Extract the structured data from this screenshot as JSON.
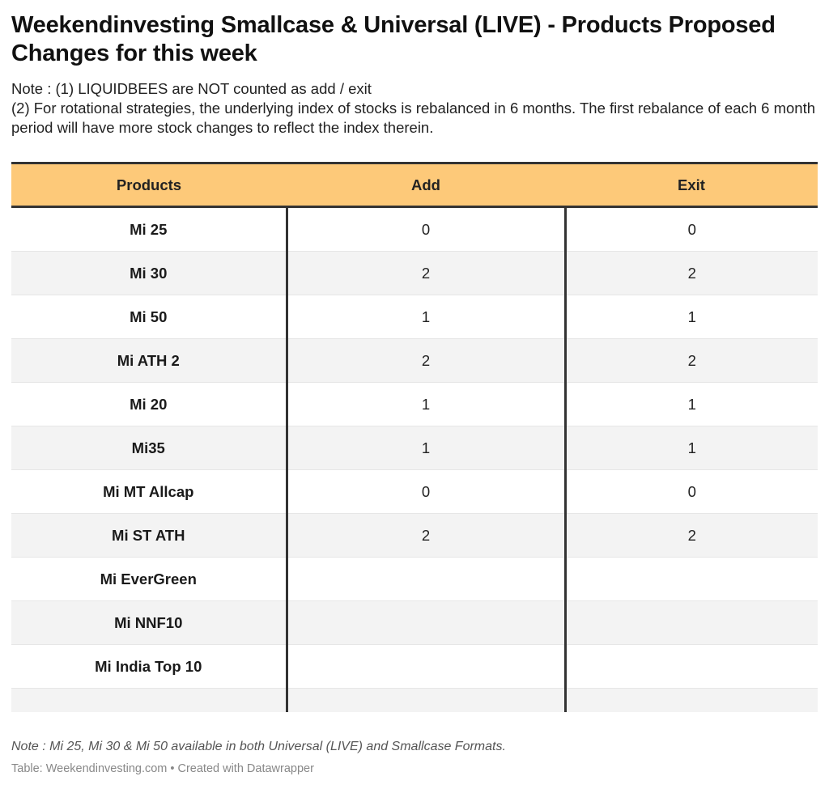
{
  "title": "Weekendinvesting Smallcase & Universal (LIVE) - Products Proposed Changes for this week",
  "notes": [
    "Note : (1) LIQUIDBEES are NOT counted as add / exit",
    "(2) For rotational strategies, the underlying index of stocks is rebalanced in 6 months. The first rebalance of each 6 month period will have more stock changes to reflect the index therein."
  ],
  "table": {
    "header_color": "#fdc979",
    "columns": [
      "Products",
      "Add",
      "Exit"
    ],
    "rows": [
      {
        "product": "Mi 25",
        "add": "0",
        "exit": "0"
      },
      {
        "product": "Mi 30",
        "add": "2",
        "exit": "2"
      },
      {
        "product": "Mi 50",
        "add": "1",
        "exit": "1"
      },
      {
        "product": "Mi ATH 2",
        "add": "2",
        "exit": "2"
      },
      {
        "product": "Mi 20",
        "add": "1",
        "exit": "1"
      },
      {
        "product": "Mi35",
        "add": "1",
        "exit": "1"
      },
      {
        "product": "Mi MT Allcap",
        "add": "0",
        "exit": "0"
      },
      {
        "product": "Mi ST ATH",
        "add": "2",
        "exit": "2"
      },
      {
        "product": "Mi EverGreen",
        "add": "",
        "exit": ""
      },
      {
        "product": "Mi NNF10",
        "add": "",
        "exit": ""
      },
      {
        "product": "Mi India Top 10",
        "add": "",
        "exit": ""
      }
    ]
  },
  "footnote": "Note : Mi 25, Mi 30 & Mi 50 available in both Universal (LIVE) and Smallcase Formats.",
  "source": "Table: Weekendinvesting.com • Created with Datawrapper"
}
